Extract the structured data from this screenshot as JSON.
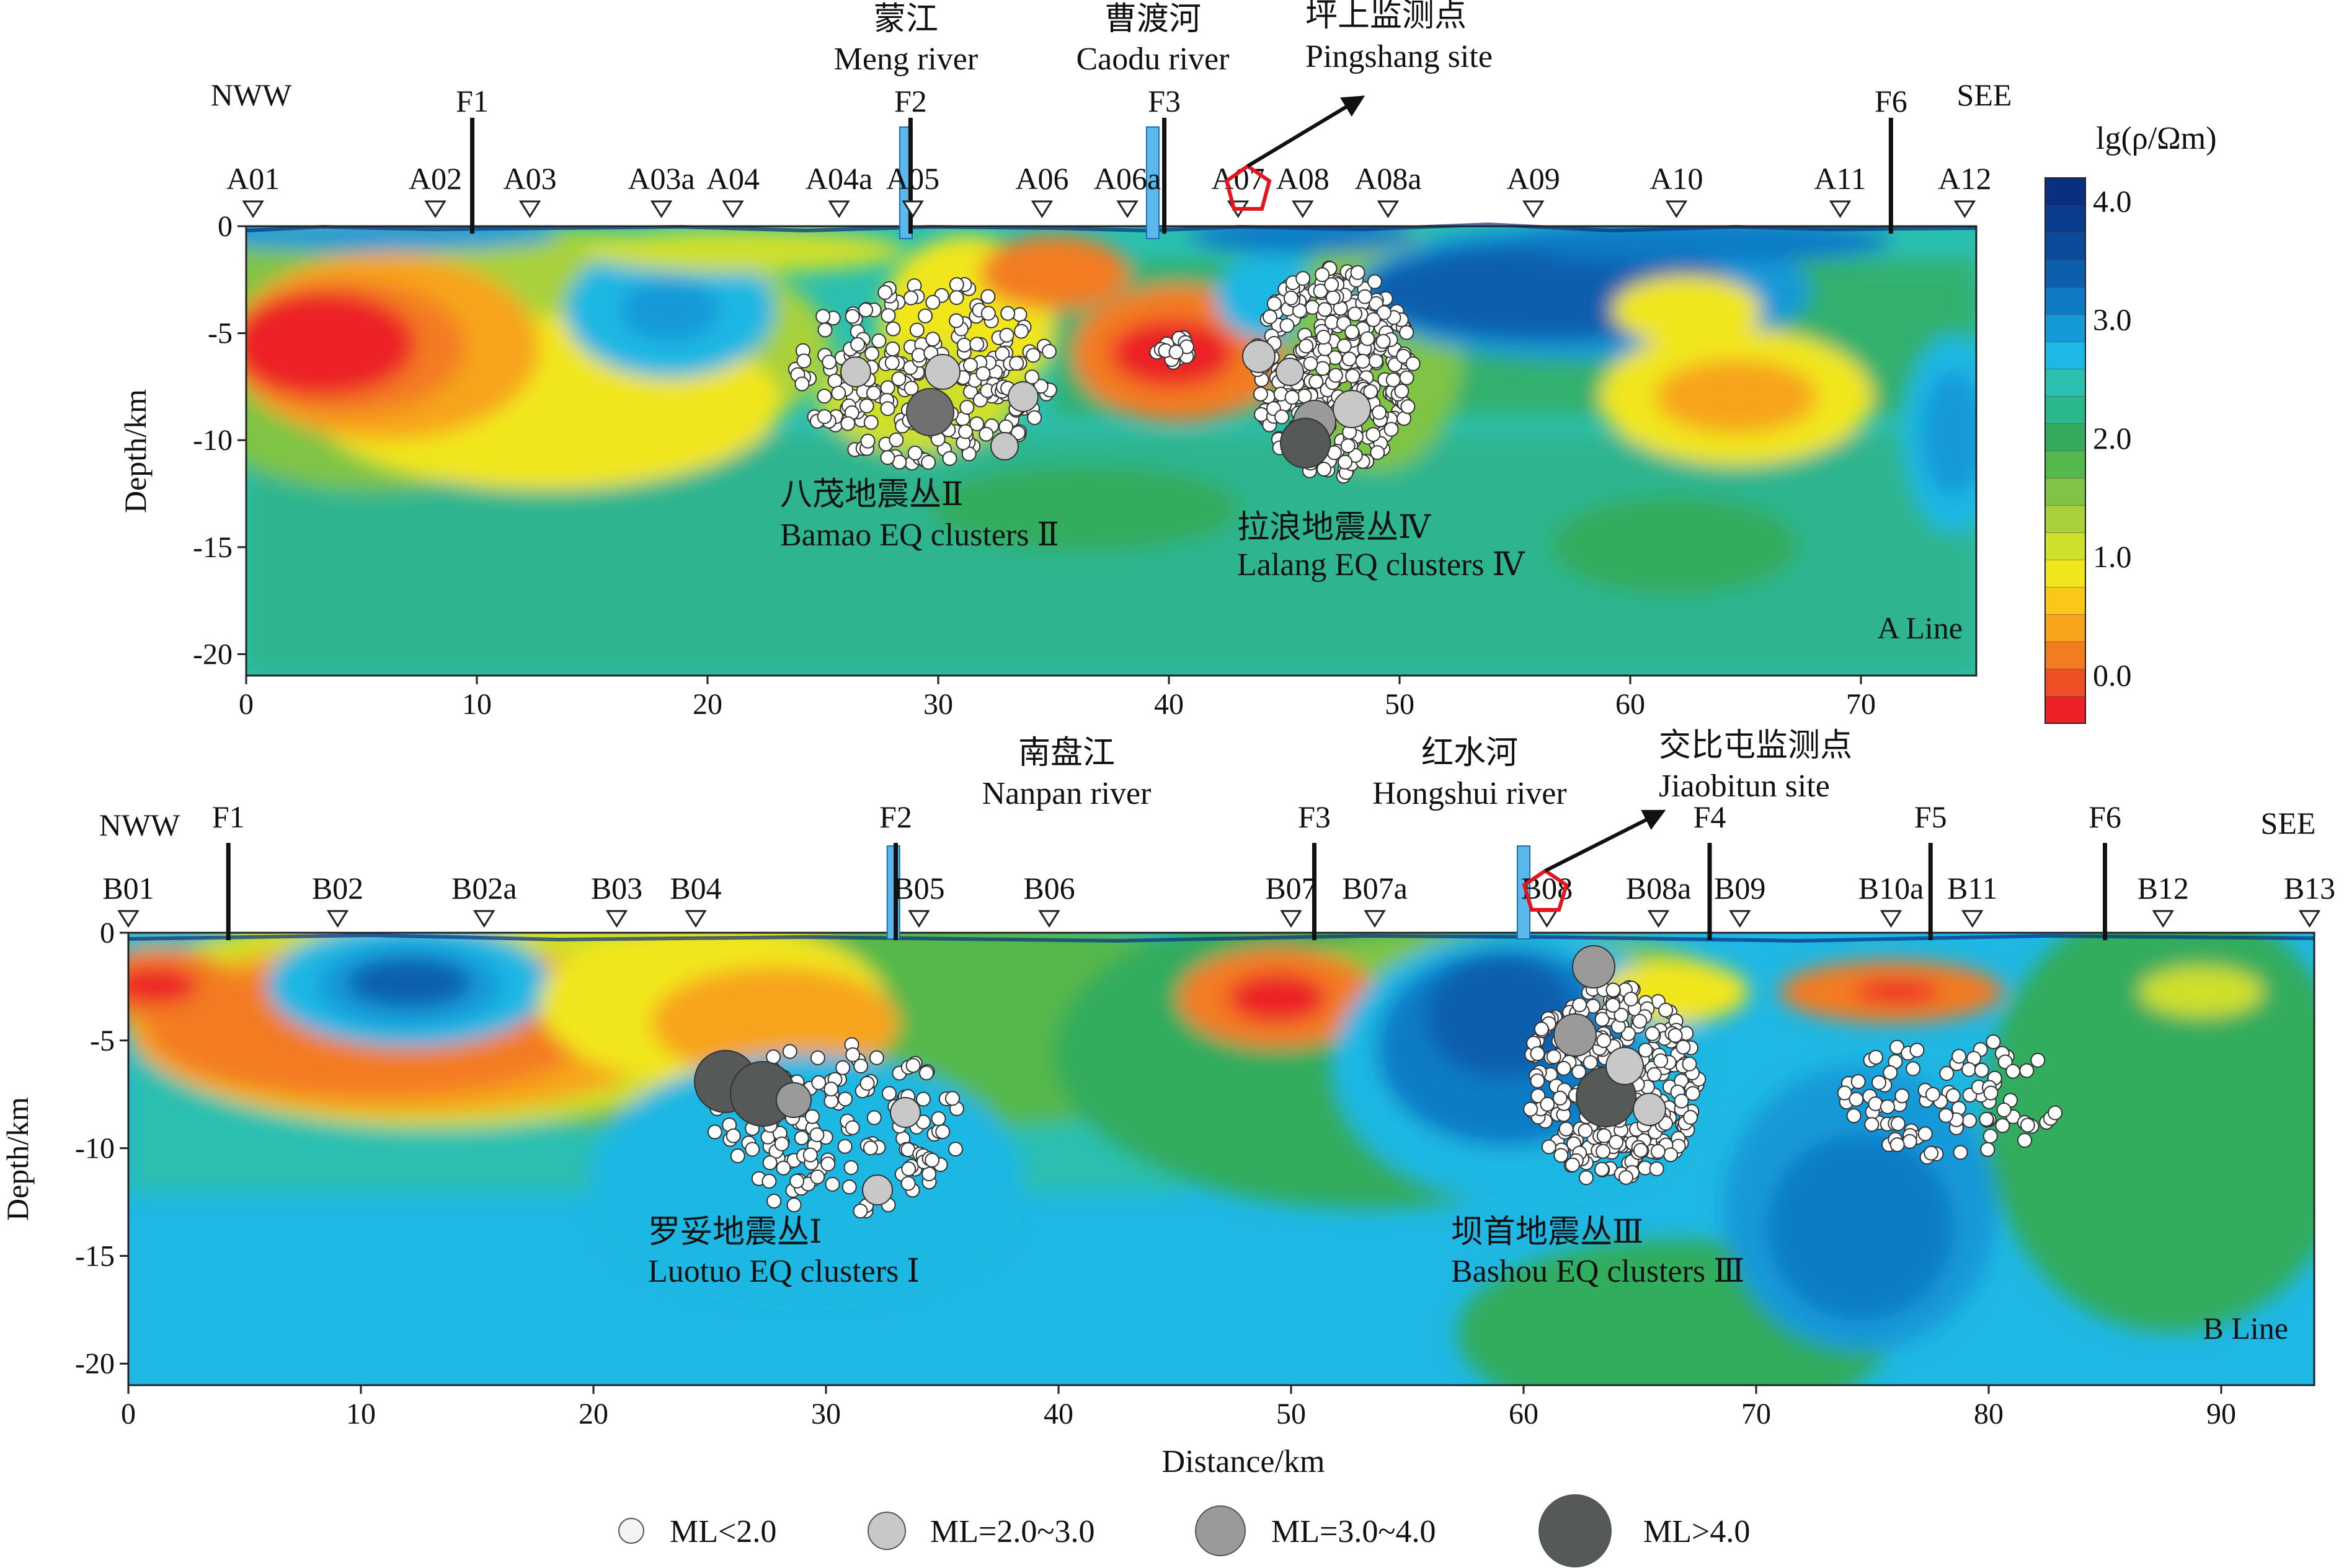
{
  "y_axis_label": "Depth/km",
  "x_axis_label": "Distance/km",
  "colorbar": {
    "title": "lg(ρ/Ωm)",
    "tick_labels": [
      "4.0",
      "3.0",
      "2.0",
      "1.0",
      "0.0"
    ],
    "tick_values": [
      4.0,
      3.0,
      2.0,
      1.0,
      0.0
    ],
    "range": [
      -0.4,
      4.2
    ],
    "colors": [
      "#ec2228",
      "#ef4f24",
      "#f37c20",
      "#f7a41c",
      "#fbc81a",
      "#f1e61b",
      "#cfe02a",
      "#a8d13a",
      "#7fc444",
      "#55b84c",
      "#33ac5d",
      "#2ab78b",
      "#2bbfb0",
      "#1fb7e3",
      "#1399d8",
      "#0f7bc7",
      "#0d5fae",
      "#0b4a9c",
      "#0a3c8e",
      "#0a2f80"
    ]
  },
  "legend": [
    {
      "label": "ML<2.0",
      "fill": "#f4f4f4"
    },
    {
      "label": "ML=2.0~3.0",
      "fill": "#c8c8c8"
    },
    {
      "label": "ML=3.0~4.0",
      "fill": "#9a9a9a"
    },
    {
      "label": "ML>4.0",
      "fill": "#555a58"
    }
  ],
  "panel_a": {
    "line_label": "A Line",
    "left_label": "NWW",
    "right_label": "SEE",
    "x_range": [
      0,
      75
    ],
    "y_range": [
      -21,
      0
    ],
    "x_ticks": [
      "0",
      "10",
      "20",
      "30",
      "40",
      "50",
      "60",
      "70"
    ],
    "y_ticks": [
      "0",
      "-5",
      "-10",
      "-15",
      "-20"
    ],
    "stations": [
      {
        "name": "A01",
        "x": 0.3
      },
      {
        "name": "A02",
        "x": 8.2
      },
      {
        "name": "A03",
        "x": 12.3
      },
      {
        "name": "A03a",
        "x": 18.0
      },
      {
        "name": "A04",
        "x": 21.1
      },
      {
        "name": "A04a",
        "x": 25.7
      },
      {
        "name": "A05",
        "x": 28.9
      },
      {
        "name": "A06",
        "x": 34.5
      },
      {
        "name": "A06a",
        "x": 38.2
      },
      {
        "name": "A07",
        "x": 43.0
      },
      {
        "name": "A08",
        "x": 45.8
      },
      {
        "name": "A08a",
        "x": 49.5
      },
      {
        "name": "A09",
        "x": 55.8
      },
      {
        "name": "A10",
        "x": 62.0
      },
      {
        "name": "A11",
        "x": 69.1
      },
      {
        "name": "A12",
        "x": 74.5
      }
    ],
    "faults": [
      {
        "name": "F1",
        "x": 9.8
      },
      {
        "name": "F2",
        "x": 28.8
      },
      {
        "name": "F3",
        "x": 39.8
      },
      {
        "name": "F6",
        "x": 71.3
      }
    ],
    "rivers": [
      {
        "name_cn": "蒙江",
        "name_en": "Meng river",
        "x": 28.6
      },
      {
        "name_cn": "曹渡河",
        "name_en": "Caodu river",
        "x": 39.3
      }
    ],
    "site": {
      "name_cn": "坪上监测点",
      "name_en": "Pingshang site",
      "x": 43.0
    },
    "clusters": [
      {
        "name_cn": "八茂地震丛Ⅱ",
        "name_en": "Bamao EQ clusters Ⅱ"
      },
      {
        "name_cn": "拉浪地震丛Ⅳ",
        "name_en": "Lalang EQ clusters Ⅳ"
      }
    ]
  },
  "panel_b": {
    "line_label": "B Line",
    "left_label": "NWW",
    "right_label": "SEE",
    "x_range": [
      0,
      94
    ],
    "y_range": [
      -21,
      0
    ],
    "x_ticks": [
      "0",
      "10",
      "20",
      "30",
      "40",
      "50",
      "60",
      "70",
      "80",
      "90"
    ],
    "y_ticks": [
      "0",
      "-5",
      "-10",
      "-15",
      "-20"
    ],
    "stations": [
      {
        "name": "B01",
        "x": 0.0
      },
      {
        "name": "B02",
        "x": 9.0
      },
      {
        "name": "B02a",
        "x": 15.3
      },
      {
        "name": "B03",
        "x": 21.0
      },
      {
        "name": "B04",
        "x": 24.4
      },
      {
        "name": "B05",
        "x": 34.0
      },
      {
        "name": "B06",
        "x": 39.6
      },
      {
        "name": "B07",
        "x": 50.0
      },
      {
        "name": "B07a",
        "x": 53.6
      },
      {
        "name": "B08",
        "x": 61.0
      },
      {
        "name": "B08a",
        "x": 65.8
      },
      {
        "name": "B09",
        "x": 69.3
      },
      {
        "name": "B10a",
        "x": 75.8
      },
      {
        "name": "B11",
        "x": 79.3
      },
      {
        "name": "B12",
        "x": 87.5
      },
      {
        "name": "B13",
        "x": 93.8
      }
    ],
    "faults": [
      {
        "name": "F1",
        "x": 4.3
      },
      {
        "name": "F2",
        "x": 33.0
      },
      {
        "name": "F3",
        "x": 51.0
      },
      {
        "name": "F4",
        "x": 68.0
      },
      {
        "name": "F5",
        "x": 77.5
      },
      {
        "name": "F6",
        "x": 85.0
      }
    ],
    "rivers": [
      {
        "name_cn": "南盘江",
        "name_en": "Nanpan river",
        "x": 32.9
      },
      {
        "name_cn": "红水河",
        "name_en": "Hongshui river",
        "x": 60.0
      }
    ],
    "site": {
      "name_cn": "交比屯监测点",
      "name_en": "Jiaobitun site",
      "x": 61.0
    },
    "clusters": [
      {
        "name_cn": "罗妥地震丛Ⅰ",
        "name_en": "Luotuo EQ clusters Ⅰ"
      },
      {
        "name_cn": "坝首地震丛Ⅲ",
        "name_en": "Bashou EQ clusters Ⅲ"
      }
    ]
  }
}
